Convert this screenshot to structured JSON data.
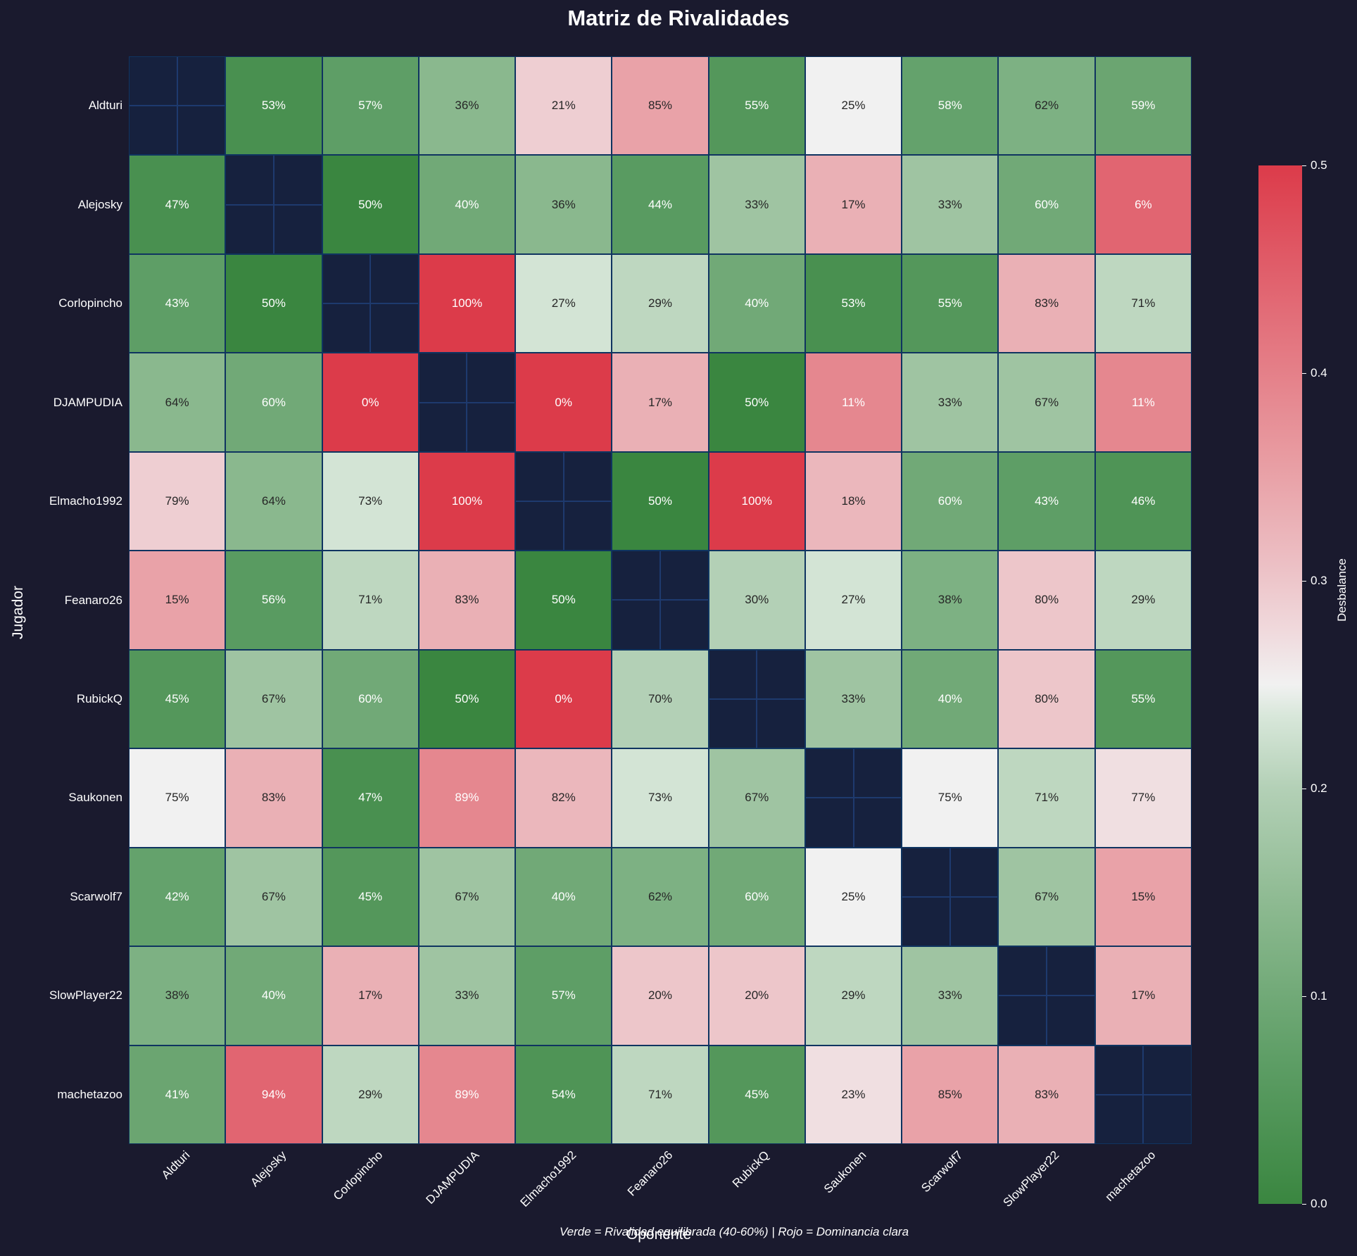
{
  "title": "Matriz de Rivalidades",
  "chart_data": {
    "type": "heatmap",
    "title": "Matriz de Rivalidades",
    "xlabel": "Oponente",
    "ylabel": "Jugador",
    "caption": "Verde = Rivalidad equilibrada (40-60%) | Rojo = Dominancia clara",
    "players": [
      "Aldturi",
      "Alejosky",
      "Corlopincho",
      "DJAMPUDIA",
      "Elmacho1992",
      "Feanaro26",
      "RubickQ",
      "Saukonen",
      "Scarwolf7",
      "SlowPlayer22",
      "machetazoo"
    ],
    "win_rate_pct": [
      [
        null,
        53,
        57,
        36,
        21,
        85,
        55,
        25,
        58,
        62,
        59
      ],
      [
        47,
        null,
        50,
        40,
        36,
        44,
        33,
        17,
        33,
        60,
        6
      ],
      [
        43,
        50,
        null,
        100,
        27,
        29,
        40,
        53,
        55,
        83,
        71
      ],
      [
        64,
        60,
        0,
        null,
        0,
        17,
        50,
        11,
        33,
        67,
        11
      ],
      [
        79,
        64,
        73,
        100,
        null,
        50,
        100,
        18,
        60,
        43,
        46
      ],
      [
        15,
        56,
        71,
        83,
        50,
        null,
        30,
        27,
        38,
        80,
        29
      ],
      [
        45,
        67,
        60,
        50,
        0,
        70,
        null,
        33,
        40,
        80,
        55
      ],
      [
        75,
        83,
        47,
        89,
        82,
        73,
        67,
        null,
        75,
        71,
        77
      ],
      [
        42,
        67,
        45,
        67,
        40,
        62,
        60,
        25,
        null,
        67,
        15
      ],
      [
        38,
        40,
        17,
        33,
        57,
        20,
        20,
        29,
        33,
        null,
        17
      ],
      [
        41,
        94,
        29,
        89,
        54,
        71,
        45,
        23,
        85,
        83,
        null
      ]
    ],
    "color_metric": "Desbalance = |win_rate - 50%| / 100",
    "colorbar": {
      "label": "Desbalance",
      "range": [
        0.0,
        0.5
      ],
      "ticks": [
        "0.0",
        "0.1",
        "0.2",
        "0.3",
        "0.4",
        "0.5"
      ],
      "colors": {
        "low": "#3a8640",
        "mid": "#f1f1f1",
        "high": "#dc3b4a"
      }
    }
  },
  "colors": {
    "background": "#1a1a2e",
    "diagonal": "#16213e",
    "border": "#0f3460"
  }
}
